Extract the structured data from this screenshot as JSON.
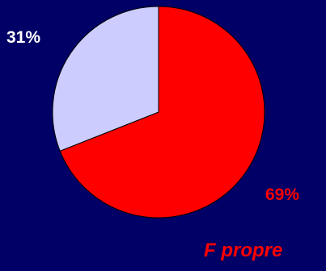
{
  "chart_data": {
    "type": "pie",
    "slices": [
      {
        "value": 69,
        "label": "69%",
        "color": "#ff0000"
      },
      {
        "value": 31,
        "label": "31%",
        "color": "#ccccff"
      }
    ],
    "start_angle_deg": 0,
    "direction": "clockwise",
    "caption": "F propre",
    "legend": "none"
  }
}
